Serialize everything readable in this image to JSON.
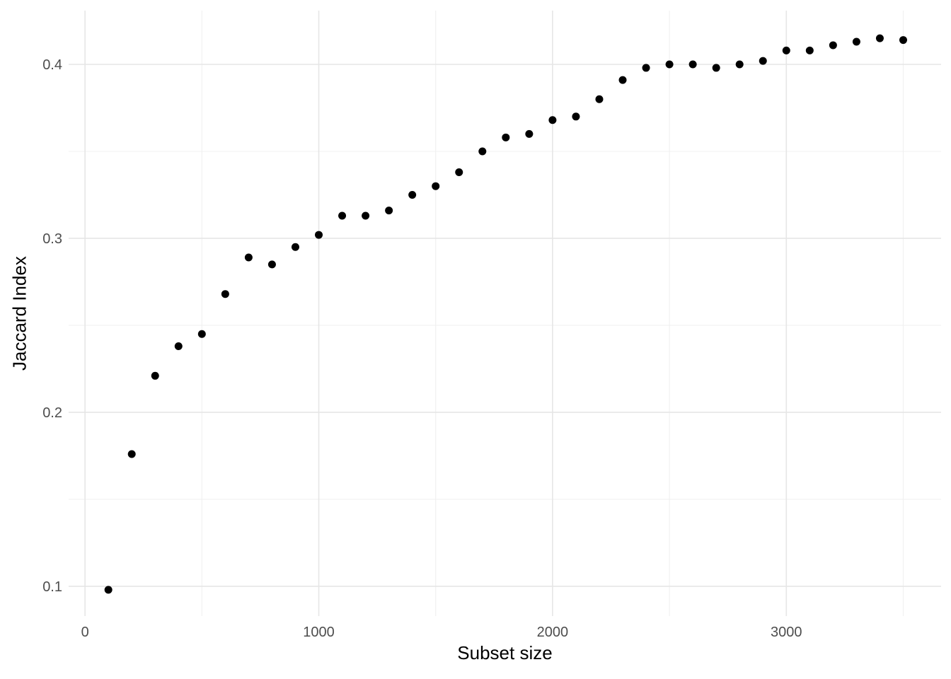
{
  "chart_data": {
    "type": "scatter",
    "title": "",
    "xlabel": "Subset size",
    "ylabel": "Jaccard Index",
    "x": [
      100,
      200,
      300,
      400,
      500,
      600,
      700,
      800,
      900,
      1000,
      1100,
      1200,
      1300,
      1400,
      1500,
      1600,
      1700,
      1800,
      1900,
      2000,
      2100,
      2200,
      2300,
      2400,
      2500,
      2600,
      2700,
      2800,
      2900,
      3000,
      3100,
      3200,
      3300,
      3400,
      3500
    ],
    "y": [
      0.098,
      0.176,
      0.221,
      0.238,
      0.245,
      0.268,
      0.289,
      0.285,
      0.295,
      0.302,
      0.313,
      0.313,
      0.316,
      0.325,
      0.33,
      0.338,
      0.35,
      0.358,
      0.36,
      0.368,
      0.37,
      0.38,
      0.391,
      0.398,
      0.4,
      0.4,
      0.398,
      0.4,
      0.402,
      0.408,
      0.408,
      0.411,
      0.413,
      0.415,
      0.414
    ],
    "x_ticks": [
      0,
      1000,
      2000,
      3000
    ],
    "y_ticks": [
      0.1,
      0.2,
      0.3,
      0.4
    ],
    "x_minor": [
      500,
      1500,
      2500,
      3500
    ],
    "y_minor": [
      0.15,
      0.25,
      0.35
    ],
    "xlim": [
      -70,
      3662
    ],
    "ylim": [
      0.0829,
      0.4309
    ],
    "grid": "major+minor",
    "legend": "none",
    "point_color": "#000000",
    "point_radius": 5.5,
    "grid_major_color": "#e6e6e6",
    "grid_minor_color": "#f0f0f0",
    "tick_label_color": "#4d4d4d",
    "axis_title_color": "#000000",
    "background": "#ffffff"
  }
}
